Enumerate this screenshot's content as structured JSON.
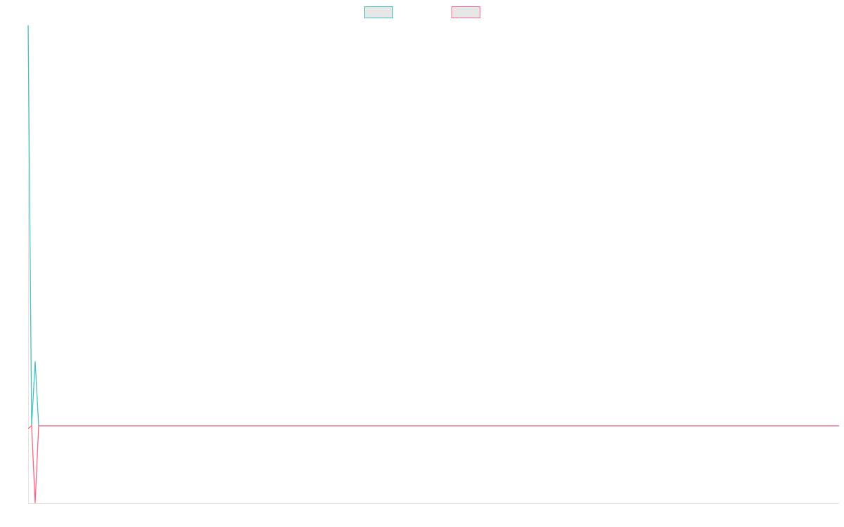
{
  "chart_data": {
    "type": "line",
    "x": [
      0,
      1,
      2,
      3,
      231
    ],
    "series": [
      {
        "color": "#4bc0c0",
        "values": [
          1,
          0,
          0.161,
          0,
          0
        ]
      },
      {
        "color": "#ff6384",
        "values": [
          -0.007,
          0,
          -0.193,
          0,
          0
        ]
      }
    ],
    "xlim": [
      0,
      231
    ],
    "ylim": [
      -0.193,
      1
    ],
    "legend": "top"
  }
}
